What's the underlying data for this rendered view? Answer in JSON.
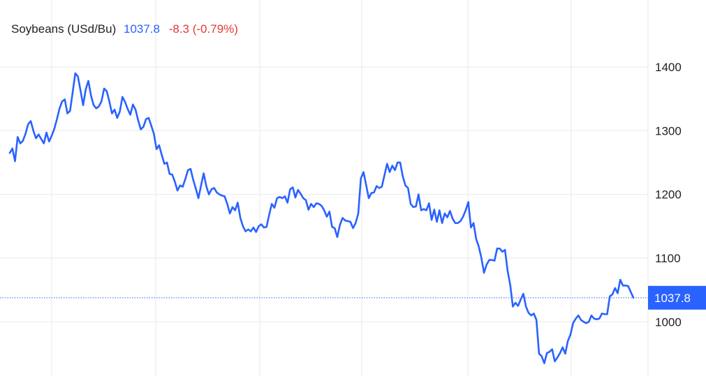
{
  "header": {
    "instrument": "Soybeans (USd/Bu)",
    "last": "1037.8",
    "change": "-8.3 (-0.79%)"
  },
  "last_badge": "1037.8",
  "colors": {
    "line": "#2962ff",
    "badge": "#2962ff",
    "change": "#e53935",
    "grid": "#e9e9ee",
    "text": "#222222"
  },
  "chart_data": {
    "type": "line",
    "title": "Soybeans (USd/Bu)",
    "xlabel": "",
    "ylabel": "",
    "ylim": [
      915,
      1505
    ],
    "yticks": [
      1000,
      1100,
      1200,
      1300,
      1400
    ],
    "ytick_labels": [
      "1000",
      "1100",
      "1200",
      "1300",
      "1400"
    ],
    "grid": true,
    "y_axis_position": "right",
    "last_value": 1037.8,
    "series": [
      {
        "values": [
          1265,
          1272,
          1252,
          1290,
          1280,
          1284,
          1295,
          1310,
          1315,
          1300,
          1288,
          1294,
          1287,
          1280,
          1297,
          1283,
          1292,
          1303,
          1318,
          1335,
          1346,
          1349,
          1327,
          1331,
          1360,
          1390,
          1385,
          1363,
          1340,
          1365,
          1378,
          1355,
          1340,
          1335,
          1338,
          1346,
          1366,
          1362,
          1346,
          1327,
          1333,
          1320,
          1330,
          1353,
          1345,
          1334,
          1325,
          1341,
          1333,
          1316,
          1302,
          1306,
          1318,
          1320,
          1308,
          1295,
          1271,
          1277,
          1262,
          1248,
          1250,
          1232,
          1231,
          1220,
          1206,
          1214,
          1212,
          1224,
          1238,
          1240,
          1223,
          1209,
          1194,
          1214,
          1233,
          1213,
          1200,
          1208,
          1210,
          1203,
          1200,
          1198,
          1197,
          1185,
          1170,
          1180,
          1175,
          1187,
          1163,
          1150,
          1142,
          1145,
          1142,
          1148,
          1141,
          1150,
          1153,
          1148,
          1149,
          1168,
          1185,
          1179,
          1194,
          1196,
          1194,
          1197,
          1187,
          1208,
          1211,
          1195,
          1207,
          1201,
          1194,
          1191,
          1176,
          1185,
          1180,
          1186,
          1185,
          1182,
          1175,
          1165,
          1173,
          1149,
          1147,
          1133,
          1152,
          1163,
          1159,
          1158,
          1157,
          1147,
          1155,
          1170,
          1225,
          1235,
          1215,
          1194,
          1202,
          1203,
          1213,
          1210,
          1212,
          1230,
          1248,
          1235,
          1245,
          1238,
          1250,
          1250,
          1228,
          1214,
          1210,
          1185,
          1180,
          1181,
          1200,
          1175,
          1177,
          1175,
          1186,
          1160,
          1176,
          1157,
          1175,
          1155,
          1170,
          1164,
          1174,
          1162,
          1155,
          1155,
          1158,
          1165,
          1175,
          1188,
          1148,
          1155,
          1130,
          1118,
          1100,
          1077,
          1090,
          1097,
          1097,
          1096,
          1115,
          1115,
          1110,
          1113,
          1080,
          1058,
          1024,
          1030,
          1025,
          1035,
          1044,
          1024,
          1014,
          1010,
          1013,
          1003,
          950,
          946,
          935,
          951,
          953,
          957,
          938,
          944,
          951,
          960,
          950,
          970,
          980,
          998,
          1005,
          1010,
          1003,
          1000,
          998,
          1000,
          1010,
          1005,
          1004,
          1005,
          1013,
          1012,
          1012,
          1040,
          1043,
          1053,
          1045,
          1066,
          1057,
          1057,
          1056,
          1047,
          1037.8
        ]
      }
    ]
  }
}
